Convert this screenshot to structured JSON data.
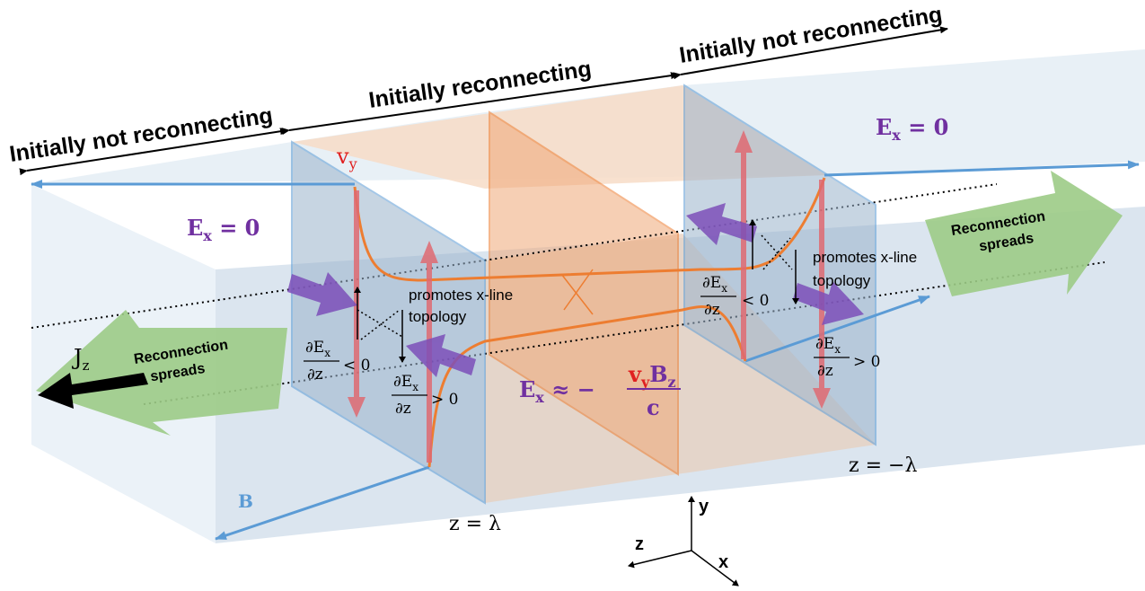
{
  "headers": {
    "left": "Initially not reconnecting",
    "center": "Initially reconnecting",
    "right": "Initially not reconnecting"
  },
  "field_labels": {
    "ex": "E",
    "ex_sub": "x",
    "eq_zero": " = 0",
    "center_approx": " ≈ −",
    "center_num_v": "v",
    "center_num_vsub": "y",
    "center_num_b": "B",
    "center_num_bsub": "z",
    "center_den": "c",
    "vy": "v",
    "vy_sub": "y",
    "b": "B",
    "jz": "J",
    "jz_sub": "z"
  },
  "annotations": {
    "promotes_line1": "promotes x-line",
    "promotes_line2": "topology",
    "spreads_line1": "Reconnection",
    "spreads_line2": "spreads"
  },
  "derivatives": {
    "num": "∂E",
    "num_sub": "x",
    "den": "∂z",
    "lt": "< 0",
    "gt": "> 0"
  },
  "planes": {
    "z_plus": "z = λ",
    "z_minus": "z = −λ"
  },
  "axes": {
    "y": "y",
    "z": "z",
    "x": "x"
  },
  "colors": {
    "box_fill": "#dce8f2",
    "reconnecting_fill": "#f6d9c4",
    "center_plane": "#f0a878",
    "plane_fill": "#9bb3cc",
    "plane_edge": "#5b9bd5",
    "field_line": "#5b9bd5",
    "vy_arrow": "#e06a72",
    "ex_arrow": "#7c4fb8",
    "spreads_arrow": "#9ccb86",
    "orange_curve": "#ed7d31",
    "purple_text": "#7030a0",
    "red_text": "#e02020"
  }
}
